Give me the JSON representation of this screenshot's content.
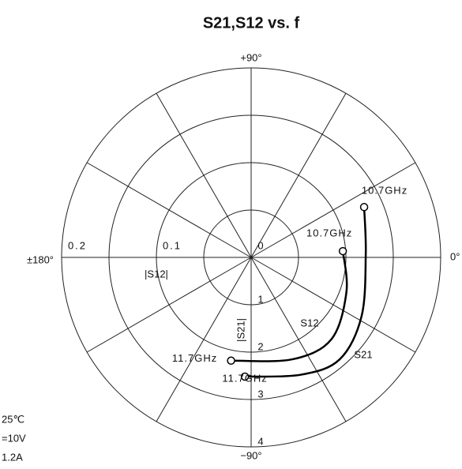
{
  "chart_data": {
    "type": "polar",
    "title": "S21,S12 vs. f",
    "thetaticks": [
      0,
      30,
      60,
      90,
      120,
      150,
      180,
      210,
      240,
      270,
      300,
      330
    ],
    "angle_labels": [
      {
        "value": 90,
        "label": "+90°"
      },
      {
        "value": 180,
        "label": "±180°"
      },
      {
        "value": 0,
        "label": "0°"
      },
      {
        "value": -90,
        "label": "−90°"
      }
    ],
    "rlim": [
      0,
      4
    ],
    "rticks": [
      0,
      1,
      2,
      3,
      4
    ],
    "r2lim": [
      0,
      0.2
    ],
    "r2ticks": [
      0.1,
      0.2
    ],
    "r_label": "|S21|",
    "r2_label": "|S12|",
    "series": [
      {
        "name": "S21",
        "axis": "r",
        "color": "#000",
        "r": [
          2.61,
          2.42,
          2.64,
          2.85,
          2.69,
          2.52
        ],
        "theta": [
          24,
          1.6,
          -28,
          -49,
          -67,
          -93
        ],
        "start_label": "10.7GHz",
        "end_label": "11.7GHz"
      },
      {
        "name": "S12",
        "axis": "r2",
        "color": "#000",
        "r": [
          0.097,
          0.107,
          0.121,
          0.116,
          0.111
        ],
        "theta": [
          3.9,
          -20,
          -45.6,
          -68,
          -101
        ],
        "start_label": "10.7GHz",
        "end_label": "11.7GHz"
      }
    ],
    "notes": [
      "25℃",
      "=10V",
      "1.2A"
    ]
  }
}
